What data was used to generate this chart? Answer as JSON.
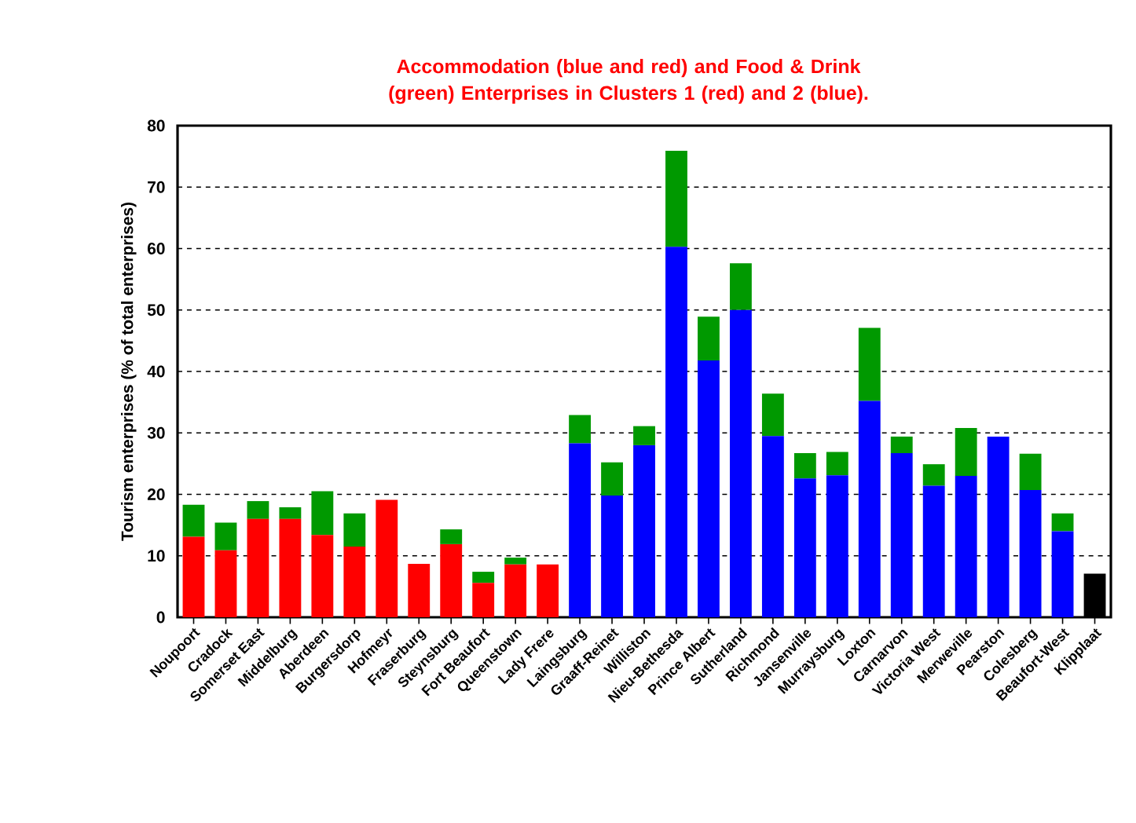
{
  "chart_data": {
    "type": "bar",
    "stacked": true,
    "title": "Accommodation  (blue and red) and Food & Drink (green) Enterprises in Clusters 1 (red) and 2 (blue).",
    "ylabel": "Tourism  enterprises  (% of total  enterprises)",
    "categories": [
      "Noupoort",
      "Cradock",
      "Somerset East",
      "Middelburg",
      "Aberdeen",
      "Burgersdorp",
      "Hofmeyr",
      "Fraserburg",
      "Steynsburg",
      "Fort Beaufort",
      "Queenstown",
      "Lady Frere",
      "Laingsburg",
      "Graaff-Reinet",
      "Williston",
      "Nieu-Bethesda",
      "Prince Albert",
      "Sutherland",
      "Richmond",
      "Jansenville",
      "Murraysburg",
      "Loxton",
      "Carnarvon",
      "Victoria West",
      "Merweville",
      "Pearston",
      "Colesberg",
      "Beaufort-West",
      "Klipplaat"
    ],
    "series": [
      {
        "values": [
          13.1,
          10.9,
          16.0,
          16.0,
          13.4,
          11.5,
          19.1,
          8.7,
          11.9,
          5.6,
          8.6,
          8.6,
          28.3,
          19.8,
          28.0,
          60.3,
          41.8,
          50.0,
          29.5,
          22.6,
          23.1,
          35.2,
          26.7,
          21.4,
          23.0,
          29.4,
          20.7,
          14.0,
          7.1
        ],
        "colors": [
          "#ff0000",
          "#ff0000",
          "#ff0000",
          "#ff0000",
          "#ff0000",
          "#ff0000",
          "#ff0000",
          "#ff0000",
          "#ff0000",
          "#ff0000",
          "#ff0000",
          "#ff0000",
          "#0000ff",
          "#0000ff",
          "#0000ff",
          "#0000ff",
          "#0000ff",
          "#0000ff",
          "#0000ff",
          "#0000ff",
          "#0000ff",
          "#0000ff",
          "#0000ff",
          "#0000ff",
          "#0000ff",
          "#0000ff",
          "#0000ff",
          "#0000ff",
          "#000000"
        ]
      },
      {
        "color": "#009900",
        "values": [
          5.2,
          4.5,
          2.9,
          1.9,
          7.1,
          5.4,
          null,
          null,
          2.4,
          1.8,
          1.1,
          null,
          4.6,
          5.4,
          3.1,
          15.6,
          7.1,
          7.6,
          6.9,
          4.1,
          3.8,
          11.9,
          2.7,
          3.5,
          7.8,
          null,
          5.9,
          2.9,
          null
        ]
      }
    ],
    "ylim": [
      0,
      80
    ],
    "yticks": [
      0,
      10,
      20,
      30,
      40,
      50,
      60,
      70,
      80
    ],
    "grid": "y"
  }
}
